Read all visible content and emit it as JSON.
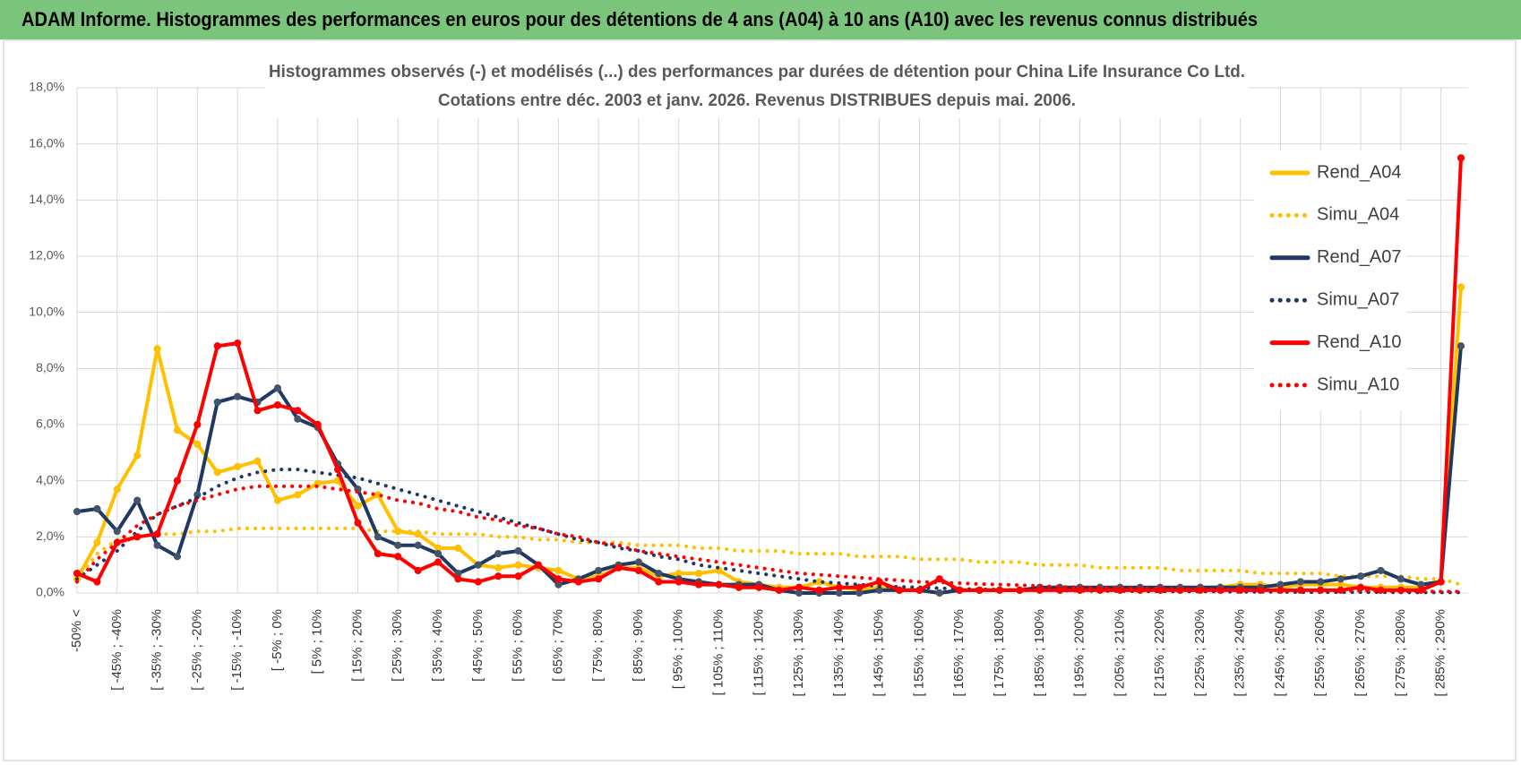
{
  "chart_data": {
    "type": "line",
    "title": "ADAM Informe. Histogrammes des performances en euros pour des détentions de 4 ans (A04) à 10 ans (A10) avec les revenus connus distribués",
    "subtitle": [
      "Histogrammes observés (-) et modélisés (...) des performances par durées de détention pour China Life Insurance Co Ltd.",
      "Cotations entre déc. 2003 et janv. 2026. Revenus DISTRIBUES depuis mai. 2006."
    ],
    "categories": [
      "-50% <",
      null,
      "[ -45% ; -40%",
      null,
      "[ -35% ; -30%",
      null,
      "[ -25% ; -20%",
      null,
      "[ -15% ; -10%",
      null,
      "[ -5% ; 0%",
      null,
      "[ 5% ; 10%",
      null,
      "[ 15% ; 20%",
      null,
      "[ 25% ; 30%",
      null,
      "[ 35% ; 40%",
      null,
      "[ 45% ; 50%",
      null,
      "[ 55% ; 60%",
      null,
      "[ 65% ; 70%",
      null,
      "[ 75% ; 80%",
      null,
      "[ 85% ; 90%",
      null,
      "[ 95% ; 100%",
      null,
      "[ 105% ; 110%",
      null,
      "[ 115% ; 120%",
      null,
      "[ 125% ; 130%",
      null,
      "[ 135% ; 140%",
      null,
      "[ 145% ; 150%",
      null,
      "[ 155% ; 160%",
      null,
      "[ 165% ; 170%",
      null,
      "[ 175% ; 180%",
      null,
      "[ 185% ; 190%",
      null,
      "[ 195% ; 200%",
      null,
      "[ 205% ; 210%",
      null,
      "[ 215% ; 220%",
      null,
      "[ 225% ; 230%",
      null,
      "[ 235% ; 240%",
      null,
      "[ 245% ; 250%",
      null,
      "[ 255% ; 260%",
      null,
      "[ 265% ; 270%",
      null,
      "[ 275% ; 280%",
      null,
      "[ 285% ; 290%",
      null
    ],
    "ylim": [
      0,
      18
    ],
    "yticks": [
      {
        "value": 0,
        "label": "0,0%"
      },
      {
        "value": 2,
        "label": "2,0%"
      },
      {
        "value": 4,
        "label": "4,0%"
      },
      {
        "value": 6,
        "label": "6,0%"
      },
      {
        "value": 8,
        "label": "8,0%"
      },
      {
        "value": 10,
        "label": "10,0%"
      },
      {
        "value": 12,
        "label": "12,0%"
      },
      {
        "value": 14,
        "label": "14,0%"
      },
      {
        "value": 16,
        "label": "16,0%"
      },
      {
        "value": 18,
        "label": "18,0%"
      }
    ],
    "grid": true,
    "legend": "right",
    "series": [
      {
        "name": "Rend_A04",
        "color": "#ffc000",
        "marker_color": "#ffc000",
        "line_style": "solid",
        "markers": true,
        "values": [
          0.5,
          1.8,
          3.7,
          4.9,
          8.7,
          5.8,
          5.3,
          4.3,
          4.5,
          4.7,
          3.3,
          3.5,
          3.9,
          4.0,
          3.1,
          3.5,
          2.2,
          2.1,
          1.6,
          1.6,
          1.0,
          0.9,
          1.0,
          0.9,
          0.8,
          0.5,
          0.6,
          0.9,
          0.9,
          0.6,
          0.7,
          0.7,
          0.8,
          0.4,
          0.3,
          0.2,
          0.2,
          0.4,
          0.2,
          0.1,
          0.2,
          0.1,
          0.1,
          0.0,
          0.1,
          0.1,
          0.1,
          0.1,
          0.2,
          0.1,
          0.1,
          0.2,
          0.1,
          0.1,
          0.2,
          0.1,
          0.2,
          0.2,
          0.3,
          0.3,
          0.2,
          0.3,
          0.3,
          0.3,
          0.2,
          0.2,
          0.2,
          0.2,
          0.4,
          10.9
        ]
      },
      {
        "name": "Simu_A04",
        "color": "#ffc000",
        "line_style": "dotted",
        "markers": false,
        "values": [
          0.5,
          1.4,
          1.9,
          2.0,
          2.1,
          2.1,
          2.2,
          2.2,
          2.3,
          2.3,
          2.3,
          2.3,
          2.3,
          2.3,
          2.3,
          2.2,
          2.2,
          2.2,
          2.1,
          2.1,
          2.1,
          2.0,
          2.0,
          1.9,
          1.9,
          1.8,
          1.8,
          1.8,
          1.7,
          1.7,
          1.7,
          1.6,
          1.6,
          1.5,
          1.5,
          1.5,
          1.4,
          1.4,
          1.4,
          1.3,
          1.3,
          1.3,
          1.2,
          1.2,
          1.2,
          1.1,
          1.1,
          1.1,
          1.0,
          1.0,
          1.0,
          0.9,
          0.9,
          0.9,
          0.9,
          0.8,
          0.8,
          0.8,
          0.8,
          0.7,
          0.7,
          0.7,
          0.7,
          0.6,
          0.6,
          0.6,
          0.6,
          0.5,
          0.5,
          0.3
        ]
      },
      {
        "name": "Rend_A07",
        "color": "#1f3864",
        "marker_color": "#44546a",
        "line_style": "solid",
        "markers": true,
        "values": [
          2.9,
          3.0,
          2.2,
          3.3,
          1.7,
          1.3,
          3.5,
          6.8,
          7.0,
          6.8,
          7.3,
          6.2,
          5.9,
          4.6,
          3.7,
          2.0,
          1.7,
          1.7,
          1.4,
          0.7,
          1.0,
          1.4,
          1.5,
          1.0,
          0.3,
          0.5,
          0.8,
          1.0,
          1.1,
          0.7,
          0.5,
          0.4,
          0.3,
          0.3,
          0.3,
          0.1,
          0.0,
          0.0,
          0.0,
          0.0,
          0.1,
          0.1,
          0.1,
          0.0,
          0.1,
          0.1,
          0.1,
          0.1,
          0.2,
          0.2,
          0.2,
          0.2,
          0.2,
          0.2,
          0.2,
          0.2,
          0.2,
          0.2,
          0.2,
          0.2,
          0.3,
          0.4,
          0.4,
          0.5,
          0.6,
          0.8,
          0.5,
          0.3,
          0.4,
          8.8
        ]
      },
      {
        "name": "Simu_A07",
        "color": "#1f3864",
        "line_style": "dotted",
        "markers": false,
        "values": [
          0.5,
          1.0,
          1.5,
          2.2,
          2.8,
          3.1,
          3.4,
          3.8,
          4.1,
          4.3,
          4.4,
          4.4,
          4.3,
          4.2,
          4.1,
          3.9,
          3.7,
          3.5,
          3.3,
          3.1,
          2.9,
          2.7,
          2.5,
          2.3,
          2.1,
          1.9,
          1.8,
          1.6,
          1.5,
          1.3,
          1.2,
          1.0,
          0.9,
          0.8,
          0.7,
          0.6,
          0.5,
          0.4,
          0.35,
          0.3,
          0.25,
          0.22,
          0.2,
          0.17,
          0.15,
          0.13,
          0.12,
          0.1,
          0.1,
          0.09,
          0.08,
          0.07,
          0.07,
          0.06,
          0.06,
          0.05,
          0.05,
          0.05,
          0.04,
          0.04,
          0.04,
          0.03,
          0.03,
          0.03,
          0.03,
          0.03,
          0.02,
          0.02,
          0.02,
          0.02
        ]
      },
      {
        "name": "Rend_A10",
        "color": "#ff0000",
        "marker_color": "#ff0000",
        "line_style": "solid",
        "markers": true,
        "values": [
          0.7,
          0.4,
          1.8,
          2.0,
          2.1,
          4.0,
          6.0,
          8.8,
          8.9,
          6.5,
          6.7,
          6.5,
          6.0,
          4.4,
          2.5,
          1.4,
          1.3,
          0.8,
          1.1,
          0.5,
          0.4,
          0.6,
          0.6,
          1.0,
          0.5,
          0.4,
          0.5,
          0.9,
          0.8,
          0.4,
          0.4,
          0.3,
          0.3,
          0.2,
          0.2,
          0.1,
          0.2,
          0.1,
          0.2,
          0.2,
          0.4,
          0.1,
          0.1,
          0.5,
          0.1,
          0.1,
          0.1,
          0.1,
          0.1,
          0.1,
          0.1,
          0.1,
          0.1,
          0.1,
          0.1,
          0.1,
          0.1,
          0.1,
          0.1,
          0.1,
          0.1,
          0.1,
          0.1,
          0.1,
          0.2,
          0.1,
          0.1,
          0.1,
          0.4,
          15.5
        ]
      },
      {
        "name": "Simu_A10",
        "color": "#ff0000",
        "line_style": "dotted",
        "markers": false,
        "values": [
          0.4,
          1.2,
          1.8,
          2.4,
          2.8,
          3.1,
          3.3,
          3.5,
          3.7,
          3.8,
          3.8,
          3.8,
          3.8,
          3.7,
          3.6,
          3.5,
          3.3,
          3.2,
          3.0,
          2.9,
          2.7,
          2.6,
          2.4,
          2.3,
          2.1,
          2.0,
          1.8,
          1.7,
          1.5,
          1.4,
          1.3,
          1.2,
          1.1,
          1.0,
          0.9,
          0.8,
          0.7,
          0.65,
          0.6,
          0.55,
          0.5,
          0.45,
          0.4,
          0.38,
          0.35,
          0.32,
          0.3,
          0.28,
          0.25,
          0.22,
          0.2,
          0.19,
          0.18,
          0.17,
          0.16,
          0.15,
          0.14,
          0.13,
          0.12,
          0.11,
          0.1,
          0.1,
          0.09,
          0.08,
          0.08,
          0.07,
          0.06,
          0.06,
          0.05,
          0.05
        ]
      }
    ]
  }
}
